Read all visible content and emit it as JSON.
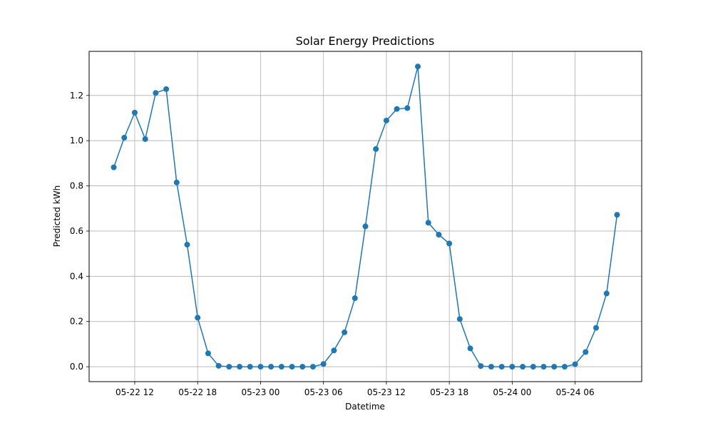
{
  "chart_data": {
    "type": "line",
    "title": "Solar Energy Predictions",
    "xlabel": "Datetime",
    "ylabel": "Predicted kWh",
    "x_start": "2024-05-22T10:00",
    "x_step_hours": 1,
    "x_ticks": [
      {
        "time": "2024-05-22T12:00",
        "label": "05-22 12"
      },
      {
        "time": "2024-05-22T18:00",
        "label": "05-22 18"
      },
      {
        "time": "2024-05-23T00:00",
        "label": "05-23 00"
      },
      {
        "time": "2024-05-23T06:00",
        "label": "05-23 06"
      },
      {
        "time": "2024-05-23T12:00",
        "label": "05-23 12"
      },
      {
        "time": "2024-05-23T18:00",
        "label": "05-23 18"
      },
      {
        "time": "2024-05-24T00:00",
        "label": "05-24 00"
      },
      {
        "time": "2024-05-24T06:00",
        "label": "05-24 06"
      }
    ],
    "y_ticks": [
      0.0,
      0.2,
      0.4,
      0.6,
      0.8,
      1.0,
      1.2
    ],
    "ylim": [
      -0.066,
      1.395
    ],
    "xlim": [
      "2024-05-22T07:39",
      "2024-05-24T12:21"
    ],
    "grid": true,
    "series": [
      {
        "color": "#1f77b4",
        "marker": "circle",
        "values": [
          0.882,
          1.013,
          1.124,
          1.007,
          1.211,
          1.228,
          0.815,
          0.54,
          0.217,
          0.059,
          0.004,
          0.0,
          0.0,
          0.0,
          0.0,
          0.0,
          0.0,
          0.0,
          0.0,
          0.0,
          0.012,
          0.072,
          0.152,
          0.303,
          0.621,
          0.963,
          1.089,
          1.14,
          1.144,
          1.328,
          0.637,
          0.584,
          0.545,
          0.211,
          0.081,
          0.003,
          0.0,
          0.0,
          0.0,
          0.0,
          0.0,
          0.0,
          0.0,
          0.0,
          0.011,
          0.065,
          0.172,
          0.324,
          0.672
        ]
      }
    ]
  }
}
